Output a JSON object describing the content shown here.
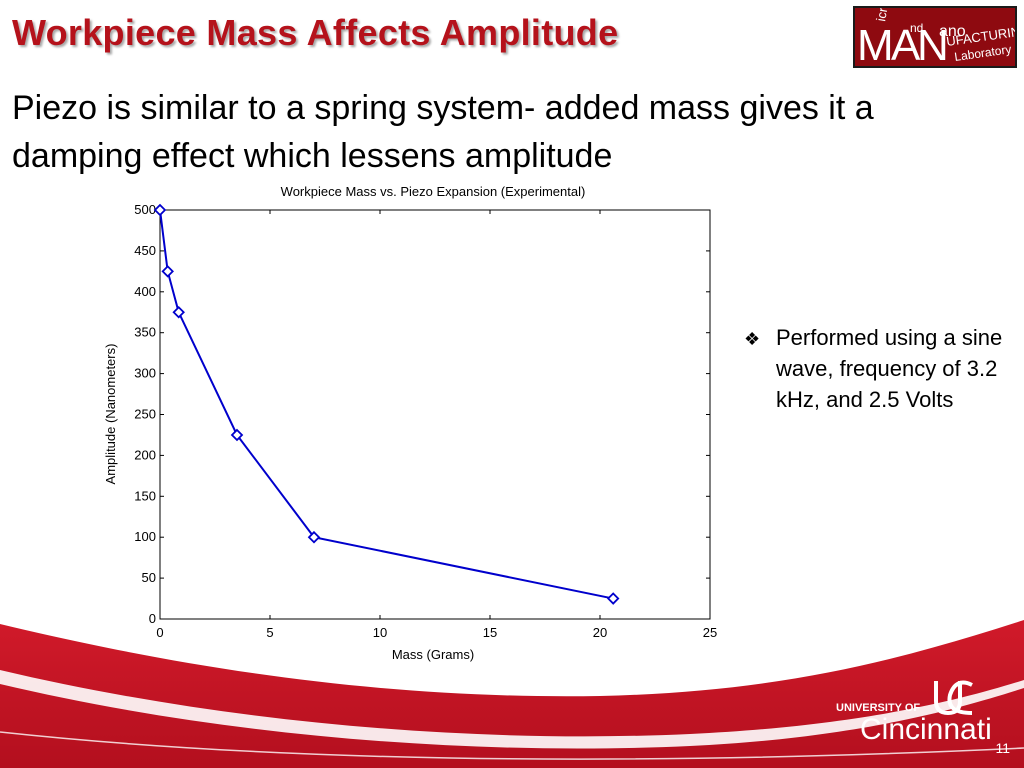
{
  "slide": {
    "title": "Workpiece Mass Affects Amplitude",
    "subtitle": "Piezo is similar to a spring system- added mass gives it a damping effect which lessens amplitude",
    "bullet_text": "Performed using a sine wave, frequency of 3.2 kHz, and 2.5 Volts",
    "bullet_marker_icon": "diamond-bullet-icon",
    "page_number": "11"
  },
  "lab_logo": {
    "text": [
      "M",
      "A",
      "N",
      "icro",
      "nd",
      "ano",
      "UFACTURING",
      "Laboratory"
    ]
  },
  "university_logo": {
    "line1": "UNIVERSITY OF",
    "line2": "Cincinnati"
  },
  "colors": {
    "title": "#b5121b",
    "series": "#0000cc",
    "footer_red": "#c8102e"
  },
  "chart_data": {
    "type": "line",
    "title": "Workpiece Mass vs. Piezo Expansion (Experimental)",
    "xlabel": "Mass (Grams)",
    "ylabel": "Amplitude (Nanometers)",
    "xlim": [
      0,
      25
    ],
    "ylim": [
      0,
      500
    ],
    "xticks": [
      0,
      5,
      10,
      15,
      20,
      25
    ],
    "yticks": [
      0,
      50,
      100,
      150,
      200,
      250,
      300,
      350,
      400,
      450,
      500
    ],
    "grid": false,
    "series": [
      {
        "marker": "diamond",
        "color": "#0000cc",
        "x": [
          0,
          0.35,
          0.85,
          3.5,
          7,
          20.6
        ],
        "y": [
          500,
          425,
          375,
          225,
          100,
          25
        ]
      }
    ]
  }
}
